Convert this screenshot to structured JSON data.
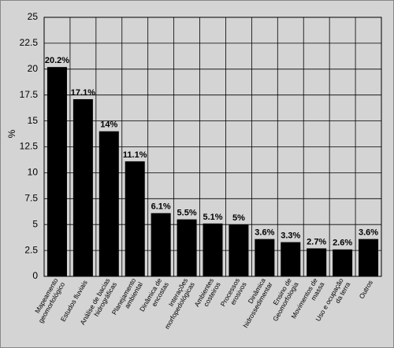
{
  "chart_data": {
    "type": "bar",
    "y_label": "%",
    "categories": [
      "Mapeamento\ngeomorfológico",
      "Estudos fluviais",
      "Análise de bacias\nhidrográficas",
      "Planejamento\nambiental",
      "Dinâmica de\nencostas",
      "Interações\nmorfopedológicas",
      "Ambientes\ncosteiros",
      "Processos\nerosivos",
      "Dinâmica\nhidrossedimentar",
      "Ensino de\nGeomorfologia",
      "Movimentos de\nmassa",
      "Uso e ocupação\nda terra",
      "Outros"
    ],
    "values": [
      20.2,
      17.1,
      14,
      11.1,
      6.1,
      5.5,
      5.1,
      5,
      3.6,
      3.3,
      2.7,
      2.6,
      3.6
    ],
    "value_labels": [
      "20.2%",
      "17.1%",
      "14%",
      "11.1%",
      "6.1%",
      "5.5%",
      "5.1%",
      "5%",
      "3.6%",
      "3.3%",
      "2.7%",
      "2.6%",
      "3.6%"
    ],
    "color": "#000000",
    "ylim": [
      0,
      25
    ],
    "yticks": [
      0,
      2.5,
      5,
      7.5,
      10,
      12.5,
      15,
      17.5,
      20,
      22.5,
      25
    ],
    "grid": true
  }
}
